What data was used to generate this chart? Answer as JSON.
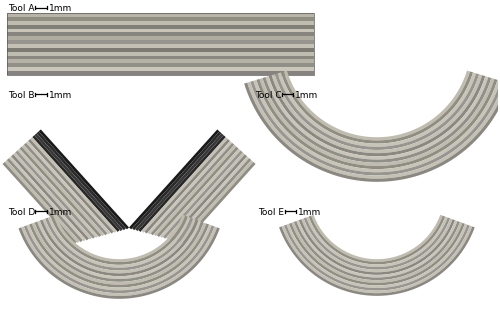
{
  "background_color": "#ffffff",
  "colors_A": [
    "#b8b5a8",
    "#908d82",
    "#c5c2b5",
    "#7a7870",
    "#d0cdc0",
    "#868480"
  ],
  "colors_arc": [
    "#b8b5a8",
    "#989488",
    "#c8c5b8",
    "#888480",
    "#d0cdc2",
    "#9a9690"
  ],
  "colors_B_dark": [
    "#282828",
    "#404040",
    "#383838"
  ],
  "label_fs": 6.5,
  "tool_labels": [
    "Tool A",
    "Tool B",
    "Tool C",
    "Tool D",
    "Tool E"
  ],
  "scalebar": "1mm"
}
